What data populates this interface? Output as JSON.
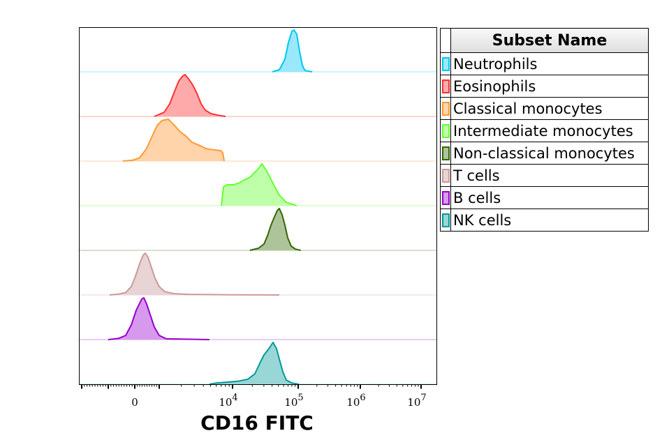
{
  "chart_data": {
    "type": "histogram-overlay",
    "xlabel": "CD16 FITC",
    "xscale": "biexponential",
    "xlim": [
      -2500,
      12000000
    ],
    "x_tick_labels": [
      {
        "value": 0,
        "label": "0"
      },
      {
        "value": 10000,
        "base": "10",
        "exp": "4"
      },
      {
        "value": 100000,
        "base": "10",
        "exp": "5"
      },
      {
        "value": 1000000,
        "base": "10",
        "exp": "6"
      },
      {
        "value": 10000000,
        "base": "10",
        "exp": "7"
      }
    ],
    "legend_title": "Subset Name",
    "legend_placement": "right",
    "series": [
      {
        "name": "Neutrophils",
        "stroke": "#00c8f0",
        "fill": "#9ae8fb",
        "x": [
          40400,
          51600,
          62800,
          71000,
          80200,
          86300,
          95200,
          105000,
          117000,
          129000,
          168000
        ],
        "y": [
          0,
          0.05,
          0.3,
          0.7,
          0.97,
          1,
          0.9,
          0.5,
          0.15,
          0.03,
          0
        ]
      },
      {
        "name": "Eosinophils",
        "stroke": "#ff3030",
        "fill": "#ffaaaa",
        "x": [
          800,
          1166,
          1390,
          1620,
          1850,
          2110,
          2250,
          2510,
          2870,
          3270,
          3730,
          4250,
          5070,
          6310,
          8040
        ],
        "y": [
          0,
          0.1,
          0.3,
          0.6,
          0.85,
          0.97,
          1,
          0.9,
          0.75,
          0.55,
          0.3,
          0.15,
          0.07,
          0.03,
          0
        ]
      },
      {
        "name": "Classical monocytes",
        "stroke": "#ff9933",
        "fill": "#ffd4aa",
        "x": [
          -447,
          -79,
          200,
          486,
          714,
          914,
          1092,
          1330,
          1620,
          1930,
          2300,
          2800,
          3490,
          4350,
          5410,
          6890,
          7360,
          7690
        ],
        "y": [
          0,
          0.02,
          0.08,
          0.3,
          0.6,
          0.85,
          0.97,
          1,
          0.85,
          0.7,
          0.6,
          0.45,
          0.38,
          0.3,
          0.27,
          0.25,
          0.2,
          0
        ]
      },
      {
        "name": "Intermediate monocytes",
        "stroke": "#66ff33",
        "fill": "#bfffaa",
        "x": [
          7050,
          7520,
          8390,
          10500,
          12800,
          15200,
          18400,
          21900,
          24700,
          28000,
          31600,
          36600,
          42400,
          51600,
          65900,
          95200
        ],
        "y": [
          0,
          0.45,
          0.5,
          0.5,
          0.55,
          0.62,
          0.68,
          0.8,
          0.88,
          1,
          0.88,
          0.7,
          0.5,
          0.25,
          0.08,
          0
        ]
      },
      {
        "name": "Non-classical monocytes",
        "stroke": "#336600",
        "fill": "#adc49a",
        "x": [
          18400,
          24800,
          30100,
          34100,
          38500,
          43500,
          48000,
          51600,
          56900,
          62800,
          69200,
          78300,
          90600,
          110000
        ],
        "y": [
          0,
          0.05,
          0.15,
          0.35,
          0.6,
          0.8,
          0.95,
          1,
          0.85,
          0.6,
          0.3,
          0.1,
          0.03,
          0
        ]
      },
      {
        "name": "T cells",
        "stroke": "#cc9999",
        "fill": "#e8d4d4",
        "x": [
          -947,
          -605,
          -342,
          -132,
          29,
          200,
          343,
          429,
          543,
          686,
          829,
          1000,
          1190,
          1620,
          2510,
          4850,
          9360,
          51600
        ],
        "y": [
          0,
          0.02,
          0.06,
          0.2,
          0.45,
          0.75,
          0.95,
          1,
          0.9,
          0.65,
          0.4,
          0.2,
          0.08,
          0.03,
          0.015,
          0.01,
          0.005,
          0
        ]
      },
      {
        "name": "B cells",
        "stroke": "#9900cc",
        "fill": "#d699ee",
        "x": [
          -1000,
          -605,
          -342,
          -132,
          57,
          286,
          371,
          486,
          629,
          800,
          1000,
          1245,
          4850
        ],
        "y": [
          0,
          0.03,
          0.1,
          0.35,
          0.7,
          0.97,
          1,
          0.85,
          0.6,
          0.3,
          0.1,
          0.02,
          0
        ]
      },
      {
        "name": "NK cells",
        "stroke": "#009999",
        "fill": "#99d6d6",
        "x": [
          4850,
          6040,
          8390,
          11900,
          17100,
          21900,
          26000,
          30100,
          35700,
          41400,
          46800,
          51600,
          58300,
          65900,
          80200,
          103000
        ],
        "y": [
          0,
          0.03,
          0.05,
          0.07,
          0.12,
          0.25,
          0.5,
          0.7,
          0.85,
          1,
          0.85,
          0.6,
          0.3,
          0.1,
          0.03,
          0
        ]
      }
    ]
  }
}
